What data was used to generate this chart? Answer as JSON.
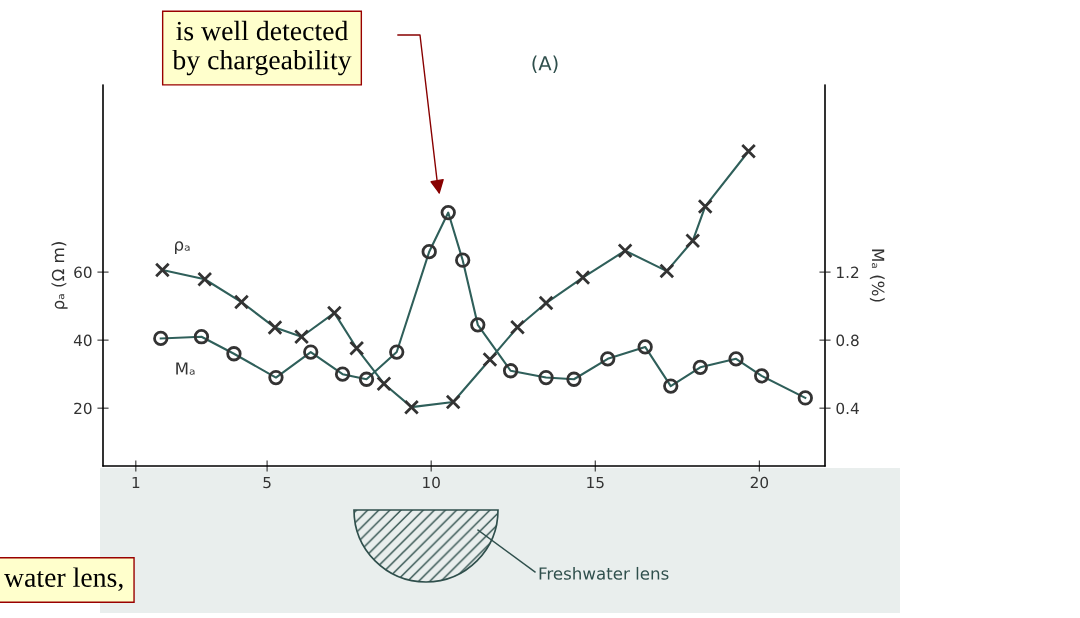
{
  "chart_data": {
    "type": "line",
    "title": "(A)",
    "ylabel": "ρₐ (Ω m)",
    "y2label": "Mₐ (%)",
    "xlim": [
      0,
      22
    ],
    "xticks": [
      1,
      5,
      10,
      15,
      20
    ],
    "ylim": [
      3,
      115
    ],
    "yticks": [
      20,
      40,
      60
    ],
    "y2lim": [
      0.06,
      2.3
    ],
    "y2ticks": [
      0.4,
      0.8,
      1.2
    ],
    "grid": false,
    "legend": false,
    "series": [
      {
        "name": "ρₐ",
        "color": "#2f5f5a",
        "marker": "cross",
        "x": [
          1.81,
          3.1,
          4.22,
          5.24,
          6.05,
          7.05,
          7.73,
          8.56,
          9.4,
          10.67,
          11.79,
          12.63,
          13.5,
          14.62,
          15.91,
          17.18,
          17.97,
          18.35,
          19.67
        ],
        "values": [
          60.6,
          57.9,
          51.2,
          43.7,
          41.0,
          48.0,
          37.6,
          27.2,
          20.3,
          21.8,
          34.3,
          43.8,
          50.9,
          58.4,
          66.3,
          60.3,
          69.2,
          79.3,
          95.5
        ]
      },
      {
        "name": "Mₐ",
        "color": "#2f5f5a",
        "marker": "circle",
        "axis": "y2",
        "x": [
          1.76,
          3.0,
          3.99,
          5.27,
          6.33,
          7.3,
          8.03,
          8.95,
          9.94,
          10.52,
          10.96,
          11.42,
          12.42,
          13.5,
          14.35,
          15.38,
          16.52,
          17.3,
          18.2,
          19.29,
          20.07,
          21.4
        ],
        "values": [
          0.81,
          0.82,
          0.72,
          0.58,
          0.73,
          0.6,
          0.57,
          0.73,
          1.32,
          1.55,
          1.27,
          0.89,
          0.62,
          0.58,
          0.57,
          0.69,
          0.76,
          0.53,
          0.64,
          0.69,
          0.59,
          0.46
        ]
      }
    ],
    "annotations": [
      "is well detected\nby chargeability",
      "water lens,",
      "Freshwater lens"
    ]
  }
}
